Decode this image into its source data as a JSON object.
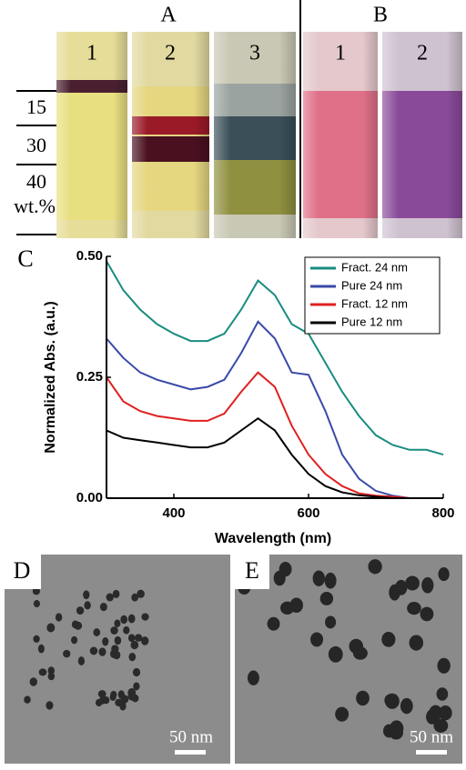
{
  "panels": {
    "top": {
      "group_a": "A",
      "group_b": "B",
      "vials_a": [
        "1",
        "2",
        "3"
      ],
      "vials_b": [
        "1",
        "2"
      ],
      "scale_labels": [
        "15",
        "30",
        "40",
        "wt.%"
      ]
    },
    "d": {
      "label": "D",
      "scale_bar": "50 nm"
    },
    "e": {
      "label": "E",
      "scale_bar": "50 nm"
    }
  },
  "chart_data": {
    "type": "line",
    "panel_label": "C",
    "x_label": "Wavelength (nm)",
    "y_label": "Normalized Abs. (a.u.)",
    "x": [
      300,
      325,
      350,
      375,
      400,
      425,
      450,
      475,
      500,
      525,
      550,
      575,
      600,
      625,
      650,
      675,
      700,
      725,
      750,
      775,
      800
    ],
    "series": [
      {
        "name": "Fract. 24 nm",
        "color": "#1a8c80",
        "values": [
          0.49,
          0.43,
          0.39,
          0.36,
          0.34,
          0.325,
          0.325,
          0.34,
          0.39,
          0.45,
          0.42,
          0.36,
          0.34,
          0.28,
          0.22,
          0.17,
          0.13,
          0.11,
          0.1,
          0.1,
          0.09
        ]
      },
      {
        "name": "Pure 24 nm",
        "color": "#3a4aa8",
        "values": [
          0.33,
          0.29,
          0.26,
          0.245,
          0.235,
          0.225,
          0.23,
          0.245,
          0.3,
          0.365,
          0.33,
          0.26,
          0.255,
          0.18,
          0.09,
          0.04,
          0.015,
          0.005,
          0,
          0,
          0
        ]
      },
      {
        "name": "Fract. 12 nm",
        "color": "#e02020",
        "values": [
          0.25,
          0.2,
          0.18,
          0.17,
          0.165,
          0.16,
          0.16,
          0.175,
          0.22,
          0.26,
          0.23,
          0.15,
          0.09,
          0.05,
          0.025,
          0.01,
          0.005,
          0.003,
          0,
          0,
          0
        ]
      },
      {
        "name": "Pure 12 nm",
        "color": "#000000",
        "values": [
          0.14,
          0.125,
          0.12,
          0.115,
          0.11,
          0.105,
          0.105,
          0.115,
          0.14,
          0.165,
          0.14,
          0.09,
          0.05,
          0.025,
          0.012,
          0.006,
          0.003,
          0,
          0,
          0,
          0
        ]
      }
    ],
    "xlim": [
      300,
      800
    ],
    "ylim": [
      0,
      0.5
    ],
    "xticks": [
      400,
      600,
      800
    ],
    "yticks": [
      {
        "value": 0,
        "label": "0.00"
      },
      {
        "value": 0.25,
        "label": "0.25"
      },
      {
        "value": 0.5,
        "label": "0.50"
      }
    ],
    "legend": "upper right"
  }
}
